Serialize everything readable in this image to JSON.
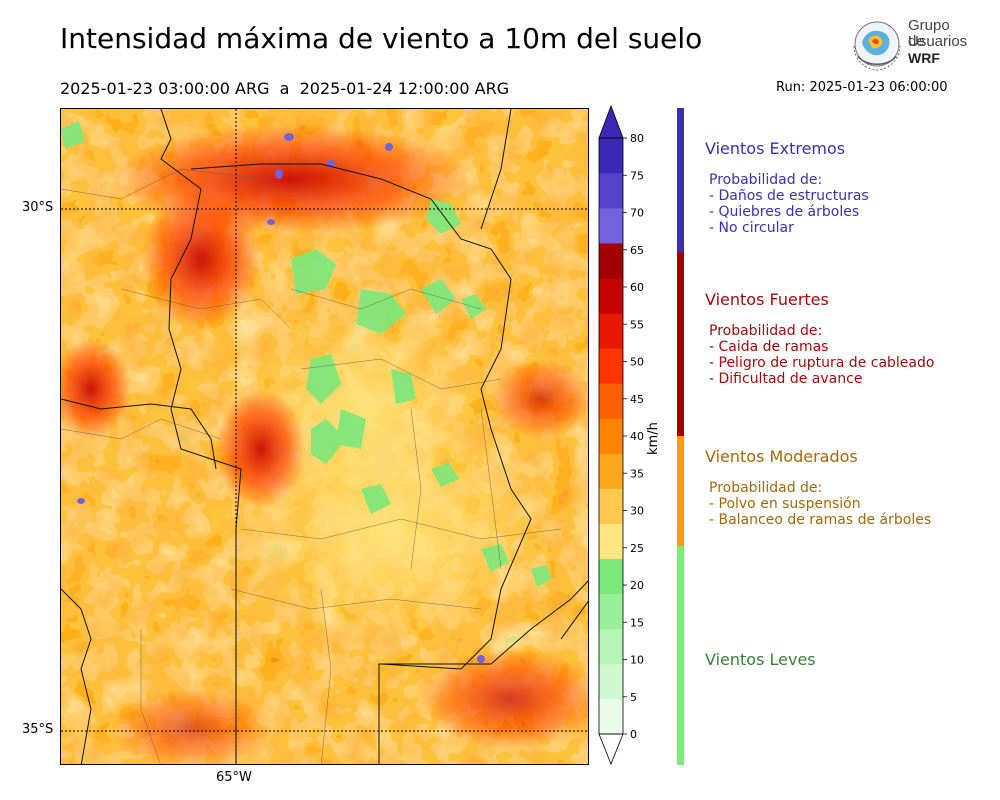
{
  "title": "Intensidad máxima de viento a 10m del suelo",
  "period": "2025-01-23 03:00:00 ARG  a  2025-01-24 12:00:00 ARG",
  "run": "Run: 2025-01-23 06:00:00",
  "logo": {
    "line1": "Grupo de",
    "line2": "Usuarios",
    "line3": "WRF"
  },
  "map": {
    "lat_labels": [
      "30°S",
      "35°S"
    ],
    "lon_labels": [
      "65°W"
    ]
  },
  "colorbar": {
    "unit": "km/h",
    "ticks": [
      "0",
      "5",
      "10",
      "15",
      "20",
      "25",
      "30",
      "35",
      "40",
      "45",
      "50",
      "55",
      "60",
      "65",
      "70",
      "75",
      "80"
    ],
    "colors": [
      "#e8fce8",
      "#cff8cf",
      "#b4f4b4",
      "#98ef98",
      "#7be87b",
      "#ffe680",
      "#ffc84e",
      "#ffa71a",
      "#ff8400",
      "#ff5f00",
      "#ff3500",
      "#e81700",
      "#c40000",
      "#a00000",
      "#7362e0",
      "#5742cc",
      "#3c28b4"
    ],
    "extend_min_color": "#ffffff",
    "extend_max_color": "#3c28b4"
  },
  "categories": [
    {
      "title": "Vientos Extremos",
      "color": "#3a2fb0",
      "bar_color": "#3a2fb0",
      "range": [
        65,
        100
      ],
      "desc": [
        "Probabilidad de:",
        "- Daños de estructuras",
        "- Quiebres de árboles",
        "- No circular"
      ]
    },
    {
      "title": "Vientos Fuertes",
      "color": "#9b0a0a",
      "bar_color": "#a00000",
      "range": [
        40,
        65
      ],
      "desc": [
        "Probabilidad de:",
        "- Caida de ramas",
        "- Peligro de ruptura de cableado",
        "- Dificultad de avance"
      ]
    },
    {
      "title": "Vientos Moderados",
      "color": "#a5670a",
      "bar_color": "#ffa000",
      "range": [
        25,
        40
      ],
      "desc": [
        "Probabilidad de:",
        "- Polvo en suspensión",
        "- Balanceo de ramas de árboles"
      ]
    },
    {
      "title": "Vientos Leves",
      "color": "#3a7d3a",
      "bar_color": "#78f078",
      "range": [
        0,
        25
      ],
      "desc": []
    }
  ]
}
